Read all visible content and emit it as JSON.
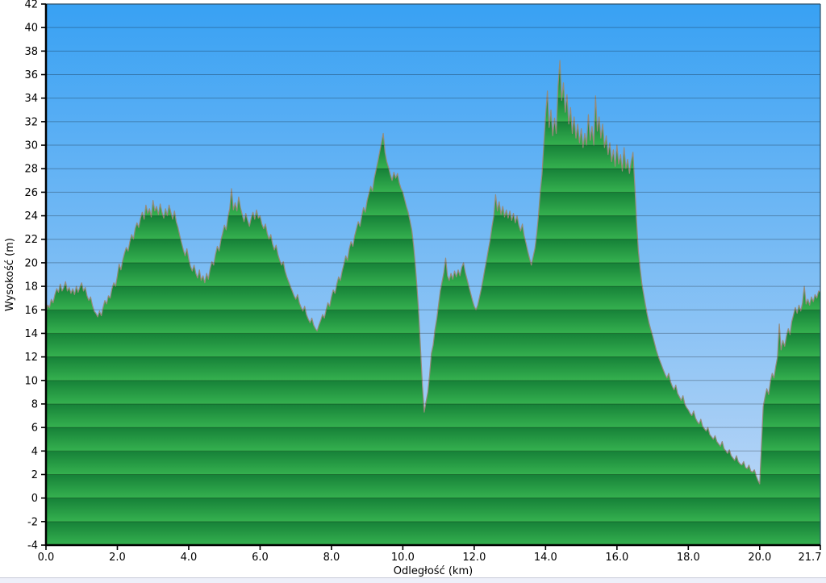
{
  "page": {
    "background": "#ffffff",
    "bottom_strip_color": "#edeff9",
    "bottom_strip_border": "#c8ccd9"
  },
  "chart_data": {
    "type": "area",
    "title": "",
    "xlabel": "Odległość  (km)",
    "ylabel": "Wysokość (m)",
    "xlim": [
      0,
      21.7
    ],
    "ylim": [
      -4,
      42
    ],
    "grid": "horizontal lines every 2 m, no vertical gridlines",
    "legend": "none",
    "x_tick_labels": [
      "0.0",
      "2.0",
      "4.0",
      "6.0",
      "8.0",
      "10.0",
      "12.0",
      "14.0",
      "16.0",
      "18.0",
      "20.0",
      "21.7"
    ],
    "y_tick_labels": [
      "-4",
      "-2",
      "0",
      "2",
      "4",
      "6",
      "8",
      "10",
      "12",
      "14",
      "16",
      "18",
      "20",
      "22",
      "24",
      "26",
      "28",
      "30",
      "32",
      "34",
      "36",
      "38",
      "40",
      "42"
    ],
    "colors": {
      "sky_top": "#38a1f3",
      "sky_bottom": "#c4daf6",
      "terrain_band_dark": "#168138",
      "terrain_band_light": "#35b14f",
      "terrain_outline": "#948b7b",
      "gridline": "rgba(0,0,0,0.27)",
      "axis": "#000000",
      "frame": "#2e5168",
      "text": "#000000"
    },
    "series": {
      "name": "elevation-profile",
      "unit_x": "km",
      "unit_y": "m",
      "x_start": 0.0,
      "x_step": 0.05,
      "elevations": [
        15.8,
        16.4,
        16.2,
        16.9,
        16.6,
        17.3,
        17.8,
        17.5,
        18.2,
        17.6,
        17.9,
        18.4,
        17.6,
        17.9,
        17.4,
        17.8,
        17.3,
        18.0,
        17.5,
        17.9,
        18.3,
        17.6,
        17.9,
        17.2,
        16.8,
        17.1,
        16.4,
        15.9,
        15.7,
        15.4,
        15.9,
        15.5,
        16.2,
        16.8,
        16.5,
        17.2,
        17.0,
        17.8,
        18.3,
        18.0,
        18.9,
        19.9,
        19.4,
        20.2,
        20.8,
        21.3,
        21.0,
        21.8,
        22.4,
        22.0,
        22.9,
        23.4,
        23.0,
        23.8,
        24.3,
        23.7,
        24.9,
        24.2,
        24.6,
        23.9,
        25.3,
        24.4,
        24.8,
        24.1,
        25.0,
        24.3,
        23.8,
        24.6,
        24.0,
        24.9,
        24.3,
        23.7,
        24.4,
        23.5,
        23.0,
        22.3,
        21.7,
        21.1,
        20.6,
        21.2,
        20.3,
        19.7,
        19.3,
        19.8,
        19.1,
        18.7,
        19.4,
        18.5,
        18.9,
        18.3,
        19.1,
        18.6,
        19.5,
        20.1,
        19.8,
        20.7,
        21.4,
        21.0,
        21.9,
        22.5,
        23.2,
        22.8,
        23.9,
        24.6,
        26.3,
        24.5,
        25.1,
        24.4,
        25.6,
        24.7,
        24.1,
        23.5,
        24.2,
        23.6,
        23.1,
        23.8,
        24.3,
        23.7,
        24.5,
        23.8,
        24.0,
        23.3,
        22.9,
        23.3,
        22.5,
        22.0,
        22.4,
        21.6,
        21.1,
        21.5,
        20.7,
        20.2,
        19.8,
        20.1,
        19.3,
        18.8,
        18.4,
        18.0,
        17.6,
        17.2,
        16.9,
        17.3,
        16.6,
        16.2,
        15.9,
        16.3,
        15.6,
        15.2,
        14.9,
        15.3,
        14.7,
        14.4,
        14.2,
        14.7,
        15.1,
        15.6,
        15.3,
        16.0,
        16.6,
        16.3,
        17.1,
        17.7,
        17.4,
        18.2,
        18.8,
        18.5,
        19.3,
        19.9,
        20.6,
        20.2,
        21.2,
        21.8,
        21.4,
        22.3,
        22.9,
        23.5,
        23.1,
        24.0,
        24.7,
        24.3,
        25.3,
        25.9,
        26.5,
        26.1,
        27.2,
        27.9,
        28.6,
        29.4,
        30.2,
        31.0,
        29.4,
        28.6,
        28.1,
        27.5,
        27.0,
        27.7,
        27.2,
        27.6,
        26.8,
        26.3,
        26.0,
        25.4,
        24.8,
        24.3,
        23.6,
        22.8,
        21.5,
        19.8,
        17.8,
        15.5,
        12.5,
        9.5,
        7.3,
        8.2,
        9.0,
        10.5,
        12.3,
        13.0,
        14.3,
        15.2,
        16.4,
        17.6,
        18.4,
        19.2,
        20.4,
        18.9,
        18.5,
        19.1,
        18.6,
        19.3,
        18.8,
        19.4,
        18.9,
        19.6,
        20.0,
        19.2,
        18.6,
        18.0,
        17.4,
        16.8,
        16.3,
        16.0,
        16.4,
        17.1,
        17.8,
        18.6,
        19.5,
        20.3,
        21.2,
        22.0,
        23.1,
        24.0,
        25.8,
        24.4,
        25.2,
        24.1,
        24.8,
        23.9,
        24.5,
        23.8,
        24.4,
        23.6,
        24.2,
        23.4,
        24.0,
        23.2,
        22.7,
        23.3,
        22.3,
        21.7,
        21.0,
        20.4,
        19.8,
        20.5,
        21.2,
        22.4,
        24.0,
        26.0,
        27.5,
        30.0,
        32.5,
        34.6,
        31.5,
        33.0,
        30.8,
        32.3,
        31.0,
        35.0,
        37.2,
        33.8,
        35.3,
        32.8,
        34.3,
        31.8,
        33.2,
        31.0,
        32.4,
        30.6,
        31.8,
        30.2,
        31.4,
        29.8,
        31.0,
        30.0,
        32.6,
        30.4,
        31.6,
        30.0,
        34.2,
        31.2,
        32.4,
        30.6,
        31.8,
        29.8,
        30.8,
        29.2,
        30.2,
        28.6,
        29.6,
        28.2,
        30.0,
        28.4,
        29.2,
        27.8,
        29.8,
        28.0,
        28.8,
        27.6,
        28.6,
        29.4,
        26.5,
        23.5,
        21.0,
        19.5,
        18.2,
        17.3,
        16.4,
        15.6,
        14.9,
        14.3,
        13.8,
        13.2,
        12.6,
        12.1,
        11.7,
        11.3,
        10.9,
        10.5,
        10.2,
        10.6,
        9.9,
        9.5,
        9.2,
        9.6,
        8.9,
        8.6,
        8.3,
        8.7,
        8.0,
        7.7,
        7.5,
        7.2,
        7.0,
        7.4,
        6.8,
        6.5,
        6.3,
        6.7,
        6.1,
        5.9,
        5.7,
        6.0,
        5.4,
        5.2,
        5.0,
        5.3,
        4.8,
        4.6,
        4.4,
        4.8,
        4.2,
        4.0,
        3.8,
        4.1,
        3.6,
        3.4,
        3.2,
        3.6,
        3.1,
        2.9,
        2.8,
        3.1,
        2.6,
        2.5,
        2.8,
        2.3,
        2.2,
        2.4,
        1.9,
        1.5,
        1.2,
        4.5,
        7.8,
        8.6,
        9.3,
        8.8,
        9.9,
        10.6,
        10.2,
        11.2,
        12.0,
        14.8,
        12.6,
        13.4,
        12.9,
        13.8,
        14.4,
        13.9,
        15.0,
        15.6,
        16.2,
        15.7,
        16.4,
        15.9,
        16.6,
        18.0,
        16.5,
        16.9,
        16.4,
        17.1,
        16.7,
        17.3,
        17.0,
        17.6,
        17.5
      ]
    }
  }
}
